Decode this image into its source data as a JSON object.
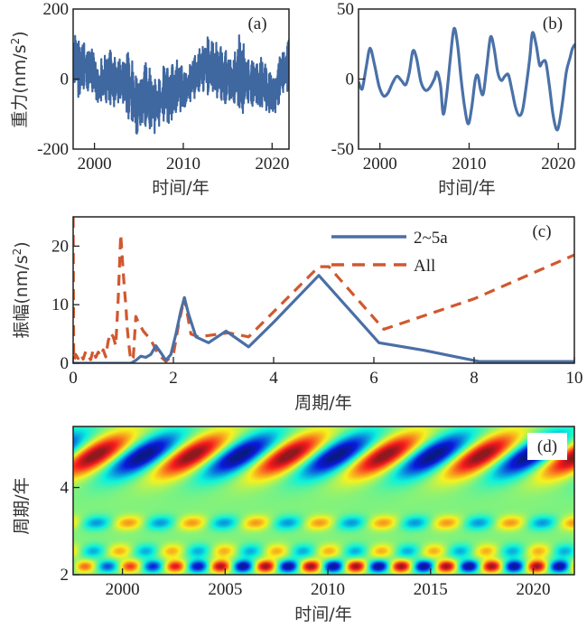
{
  "chart_data": [
    {
      "id": "a",
      "type": "line",
      "panel_label": "(a)",
      "xlabel": "时间/年",
      "ylabel": "重力(nm/s²)",
      "ylabel_main": "重力(nm/s",
      "ylabel_sup": "2",
      "ylabel_close": ")",
      "xlim": [
        1997.6,
        2021.9
      ],
      "ylim": [
        -200,
        200
      ],
      "xticks": [
        2000,
        2010,
        2020
      ],
      "xtick_labels": [
        "2000",
        "2010",
        "2020"
      ],
      "yticks": [
        200,
        0,
        -200
      ],
      "ytick_labels": [
        "200",
        "0",
        "-200"
      ],
      "color": "#3f67a0",
      "description": "Dense high-frequency gravity residual series; envelope trend shown by local max/min per year",
      "series": [
        {
          "name": "gravity",
          "x": [
            1997.7,
            1998.0,
            1998.5,
            1999.0,
            1999.5,
            2000.0,
            2000.5,
            2001.0,
            2001.5,
            2002.0,
            2002.5,
            2003.0,
            2003.5,
            2004.0,
            2004.5,
            2005.0,
            2005.5,
            2006.0,
            2006.5,
            2007.0,
            2007.5,
            2008.0,
            2008.5,
            2009.0,
            2009.5,
            2010.0,
            2010.5,
            2011.0,
            2011.5,
            2012.0,
            2012.5,
            2013.0,
            2013.5,
            2014.0,
            2014.5,
            2015.0,
            2015.5,
            2016.0,
            2016.5,
            2017.0,
            2017.5,
            2018.0,
            2018.5,
            2019.0,
            2019.5,
            2020.0,
            2020.5,
            2021.0,
            2021.5,
            2021.9
          ],
          "upper": [
            130,
            160,
            150,
            110,
            100,
            90,
            60,
            80,
            90,
            95,
            60,
            80,
            95,
            100,
            40,
            25,
            60,
            55,
            30,
            10,
            20,
            70,
            60,
            50,
            90,
            40,
            30,
            80,
            90,
            100,
            140,
            120,
            130,
            110,
            100,
            90,
            60,
            110,
            165,
            90,
            60,
            70,
            60,
            80,
            40,
            30,
            30,
            100,
            80,
            140
          ],
          "lower": [
            -20,
            -80,
            -60,
            -50,
            -30,
            -60,
            -100,
            -90,
            -80,
            -100,
            -80,
            -90,
            -120,
            -140,
            -160,
            -175,
            -140,
            -150,
            -175,
            -160,
            -130,
            -140,
            -160,
            -120,
            -110,
            -120,
            -80,
            -70,
            -60,
            -40,
            -50,
            -60,
            -60,
            -70,
            -90,
            -80,
            -100,
            -120,
            -130,
            -90,
            -80,
            -90,
            -100,
            -110,
            -100,
            -130,
            -110,
            -60,
            -50,
            -40
          ]
        }
      ]
    },
    {
      "id": "b",
      "type": "line",
      "panel_label": "(b)",
      "xlabel": "时间/年",
      "ylabel": "",
      "xlim": [
        1997.6,
        2021.9
      ],
      "ylim": [
        -50,
        50
      ],
      "xticks": [
        2000,
        2010,
        2020
      ],
      "xtick_labels": [
        "2000",
        "2010",
        "2020"
      ],
      "yticks": [
        50,
        0,
        -50
      ],
      "ytick_labels": [
        "50",
        "0",
        "-50"
      ],
      "color": "#4a71a8",
      "series": [
        {
          "name": "2~5a filtered",
          "x": [
            1997.6,
            1997.9,
            1998.1,
            1998.5,
            1998.9,
            1999.4,
            1999.9,
            2000.4,
            2000.9,
            2001.4,
            2001.9,
            2002.4,
            2002.9,
            2003.3,
            2003.7,
            2004.1,
            2004.6,
            2005.1,
            2005.6,
            2006.1,
            2006.4,
            2006.8,
            2007.1,
            2007.5,
            2007.9,
            2008.3,
            2008.7,
            2009.1,
            2009.5,
            2009.9,
            2010.3,
            2010.7,
            2011.0,
            2011.3,
            2011.6,
            2012.0,
            2012.4,
            2012.8,
            2013.2,
            2013.6,
            2014.0,
            2014.4,
            2014.8,
            2015.2,
            2015.6,
            2016.0,
            2016.4,
            2016.8,
            2017.1,
            2017.5,
            2017.9,
            2018.2,
            2018.6,
            2019.0,
            2019.4,
            2019.8,
            2020.1,
            2020.5,
            2020.9,
            2021.3,
            2021.6,
            2021.9
          ],
          "y": [
            -2,
            -7,
            -5,
            10,
            22,
            10,
            -5,
            -12,
            -10,
            -3,
            2,
            -1,
            -4,
            5,
            20,
            15,
            -2,
            -8,
            -6,
            0,
            5,
            -5,
            -25,
            -10,
            15,
            36,
            25,
            0,
            -20,
            -32,
            -20,
            0,
            2,
            -8,
            -10,
            10,
            30,
            22,
            5,
            -1,
            2,
            3,
            -8,
            -20,
            -26,
            -22,
            -5,
            15,
            33,
            25,
            10,
            12,
            12,
            -5,
            -25,
            -36,
            -32,
            -15,
            5,
            15,
            22,
            25
          ]
        }
      ]
    },
    {
      "id": "c",
      "type": "line",
      "panel_label": "(c)",
      "xlabel": "周期/年",
      "ylabel": "振幅(nm/s²)",
      "ylabel_main": "振幅(nm/s",
      "ylabel_sup": "2",
      "ylabel_close": ")",
      "xlim": [
        0,
        10
      ],
      "ylim": [
        0,
        25
      ],
      "xticks": [
        0,
        2,
        4,
        6,
        8,
        10
      ],
      "xtick_labels": [
        "0",
        "2",
        "4",
        "6",
        "8",
        "10"
      ],
      "yticks": [
        0,
        10,
        20
      ],
      "ytick_labels": [
        "0",
        "10",
        "20"
      ],
      "legend": {
        "position": "top-right",
        "entries": [
          "2~5a",
          "All"
        ]
      },
      "series": [
        {
          "name": "2~5a",
          "style": "solid",
          "color": "#4a6fa5",
          "x": [
            0,
            1.15,
            1.25,
            1.35,
            1.45,
            1.55,
            1.65,
            1.75,
            1.85,
            1.95,
            2.05,
            2.15,
            2.22,
            2.3,
            2.45,
            2.7,
            3.05,
            3.5,
            4.0,
            4.9,
            6.1,
            7.0,
            8.1,
            10.0
          ],
          "y": [
            0,
            0,
            0.5,
            1.2,
            1.0,
            1.5,
            3.0,
            1.8,
            0.5,
            1.5,
            5.0,
            9.0,
            11.2,
            8.5,
            4.5,
            3.5,
            5.5,
            2.8,
            7.0,
            15.0,
            3.5,
            2.2,
            0.3,
            0.3
          ]
        },
        {
          "name": "All",
          "style": "dashed",
          "color": "#d0582f",
          "x": [
            0.0,
            0.01,
            0.02,
            0.05,
            0.1,
            0.15,
            0.2,
            0.25,
            0.3,
            0.35,
            0.4,
            0.45,
            0.5,
            0.55,
            0.6,
            0.65,
            0.7,
            0.75,
            0.8,
            0.85,
            0.9,
            0.95,
            0.98,
            1.02,
            1.05,
            1.08,
            1.12,
            1.15,
            1.2,
            1.25,
            1.3,
            1.4,
            1.55,
            1.7,
            1.85,
            2.0,
            2.1,
            2.22,
            2.35,
            2.5,
            2.75,
            3.1,
            3.5,
            4.9,
            5.1,
            6.2,
            8.0,
            10.0
          ],
          "y": [
            25,
            1.0,
            0.5,
            1.5,
            0.8,
            1.6,
            0.7,
            2.0,
            1.2,
            0.6,
            2.3,
            1.0,
            1.9,
            1.2,
            2.3,
            1.1,
            3.8,
            5.2,
            4.5,
            3.0,
            11.0,
            22.0,
            18.0,
            13.0,
            10.0,
            6.0,
            2.5,
            0.5,
            1.0,
            8.0,
            7.0,
            5.5,
            4.0,
            1.5,
            0.3,
            1.5,
            6.5,
            11.2,
            5.0,
            4.5,
            4.8,
            5.2,
            4.5,
            16.5,
            16.5,
            5.8,
            11.0,
            18.5
          ]
        }
      ]
    },
    {
      "id": "d",
      "type": "heatmap",
      "panel_label": "(d)",
      "xlabel": "时间/年",
      "ylabel": "周期/年",
      "xlim": [
        1997.6,
        2022.0
      ],
      "ylim": [
        2,
        5.4
      ],
      "xticks": [
        2000,
        2005,
        2010,
        2015,
        2020
      ],
      "xtick_labels": [
        "2000",
        "2005",
        "2010",
        "2015",
        "2020"
      ],
      "yticks": [
        2,
        4
      ],
      "ytick_labels": [
        "2",
        "4"
      ],
      "colormap": "jet",
      "description": "Wavelet/band decomposition: alternating red/blue oscillation cells at periods ~2.2, ~2.6, ~3.2 and ~4.7 years",
      "bands": [
        {
          "period": 4.75,
          "cycle_years": 4.7,
          "amplitude": 1.0,
          "tilt": 0.55
        },
        {
          "period": 3.2,
          "cycle_years": 3.1,
          "amplitude": 0.45,
          "tilt": 0.2
        },
        {
          "period": 2.55,
          "cycle_years": 2.55,
          "amplitude": 0.4,
          "tilt": 0.15
        },
        {
          "period": 2.2,
          "cycle_years": 2.2,
          "amplitude": 0.95,
          "tilt": 0.1
        }
      ]
    }
  ]
}
